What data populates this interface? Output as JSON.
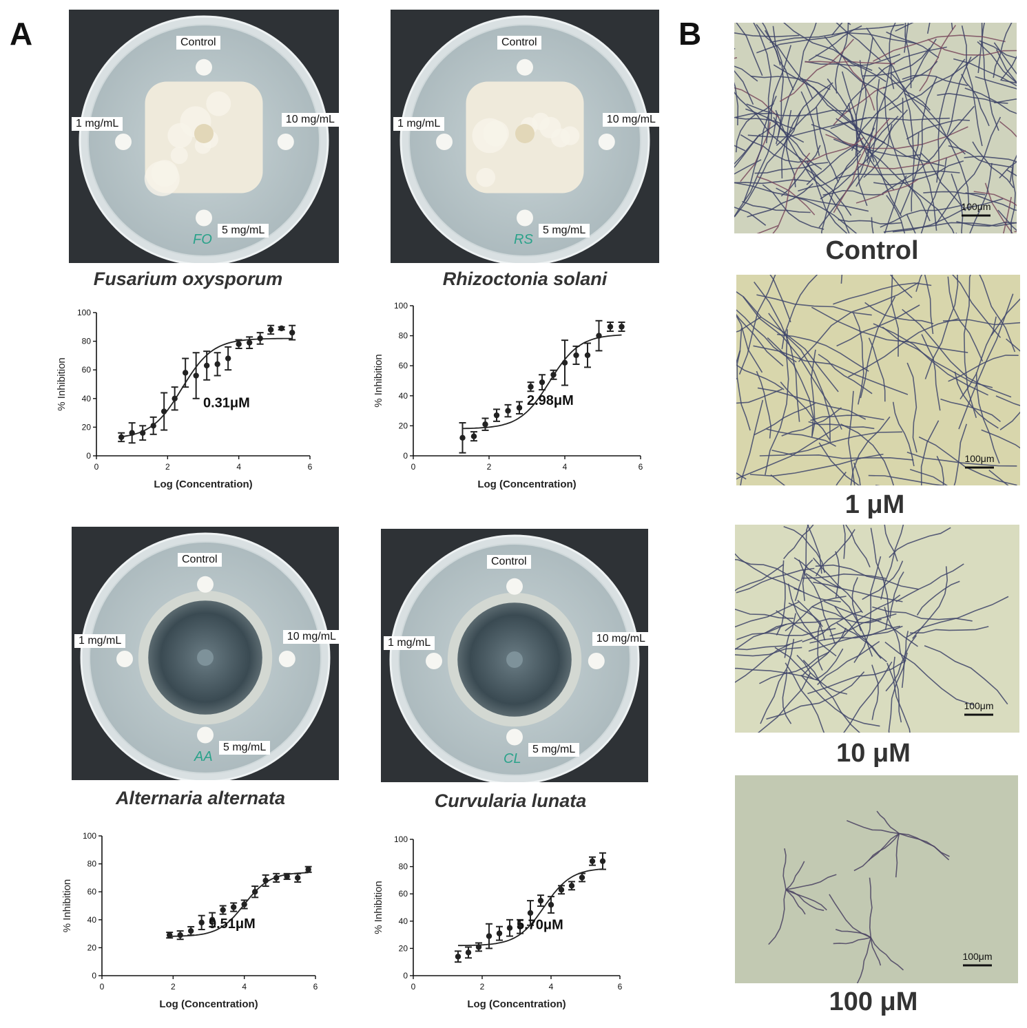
{
  "panels": {
    "a": "A",
    "b": "B"
  },
  "plates": [
    {
      "species": "Fusarium oxysporum",
      "labels": {
        "control": "Control",
        "low": "1 mg/mL",
        "high": "10 mg/mL",
        "mid": "5 mg/mL"
      },
      "marking": "FO",
      "halo": "white"
    },
    {
      "species": "Rhizoctonia solani",
      "labels": {
        "control": "Control",
        "low": "1 mg/mL",
        "high": "10 mg/mL",
        "mid": "5 mg/mL"
      },
      "marking": "RS",
      "halo": "white"
    },
    {
      "species": "Alternaria alternata",
      "labels": {
        "control": "Control",
        "low": "1 mg/mL",
        "high": "10 mg/mL",
        "mid": "5 mg/mL"
      },
      "marking": "AA",
      "halo": "dark"
    },
    {
      "species": "Curvularia lunata",
      "labels": {
        "control": "Control",
        "low": "1 mg/mL",
        "high": "10 mg/mL",
        "mid": "5 mg/mL"
      },
      "marking": "CL",
      "halo": "dark"
    }
  ],
  "chart_data": [
    {
      "type": "scatter",
      "title": "",
      "xlabel": "Log (Concentration)",
      "ylabel": "% Inhibition",
      "xlim": [
        0,
        6
      ],
      "ylim": [
        0,
        100
      ],
      "xticks": [
        "0",
        "2",
        "4",
        "6"
      ],
      "yticks": [
        "0",
        "20",
        "40",
        "60",
        "80",
        "100"
      ],
      "annotation": "0.31μM",
      "fit": {
        "bottom": 12,
        "top": 82,
        "logEC50": 2.4,
        "slope": 1.0
      },
      "points": [
        {
          "x": 0.7,
          "y": 13,
          "err": 3
        },
        {
          "x": 1.0,
          "y": 16,
          "err": 7
        },
        {
          "x": 1.3,
          "y": 16,
          "err": 5
        },
        {
          "x": 1.6,
          "y": 21,
          "err": 6
        },
        {
          "x": 1.9,
          "y": 31,
          "err": 13
        },
        {
          "x": 2.2,
          "y": 40,
          "err": 8
        },
        {
          "x": 2.5,
          "y": 58,
          "err": 10
        },
        {
          "x": 2.8,
          "y": 56,
          "err": 16
        },
        {
          "x": 3.1,
          "y": 63,
          "err": 10
        },
        {
          "x": 3.4,
          "y": 64,
          "err": 8
        },
        {
          "x": 3.7,
          "y": 68,
          "err": 8
        },
        {
          "x": 4.0,
          "y": 78,
          "err": 3
        },
        {
          "x": 4.3,
          "y": 79,
          "err": 4
        },
        {
          "x": 4.6,
          "y": 82,
          "err": 4
        },
        {
          "x": 4.9,
          "y": 88,
          "err": 3
        },
        {
          "x": 5.2,
          "y": 89,
          "err": 1
        },
        {
          "x": 5.5,
          "y": 86,
          "err": 5
        }
      ]
    },
    {
      "type": "scatter",
      "title": "",
      "xlabel": "Log (Concentration)",
      "ylabel": "% Inhibition",
      "xlim": [
        0,
        6
      ],
      "ylim": [
        0,
        100
      ],
      "xticks": [
        "0",
        "2",
        "4",
        "6"
      ],
      "yticks": [
        "0",
        "20",
        "40",
        "60",
        "80",
        "100"
      ],
      "annotation": "2.98μM",
      "fit": {
        "bottom": 18,
        "top": 81,
        "logEC50": 3.6,
        "slope": 1.1
      },
      "points": [
        {
          "x": 1.3,
          "y": 12,
          "err": 10
        },
        {
          "x": 1.6,
          "y": 13,
          "err": 3
        },
        {
          "x": 1.9,
          "y": 21,
          "err": 4
        },
        {
          "x": 2.2,
          "y": 27,
          "err": 4
        },
        {
          "x": 2.5,
          "y": 30,
          "err": 4
        },
        {
          "x": 2.8,
          "y": 32,
          "err": 4
        },
        {
          "x": 3.1,
          "y": 46,
          "err": 3
        },
        {
          "x": 3.4,
          "y": 49,
          "err": 5
        },
        {
          "x": 3.7,
          "y": 54,
          "err": 3
        },
        {
          "x": 4.0,
          "y": 62,
          "err": 15
        },
        {
          "x": 4.3,
          "y": 67,
          "err": 6
        },
        {
          "x": 4.6,
          "y": 67,
          "err": 8
        },
        {
          "x": 4.9,
          "y": 80,
          "err": 10
        },
        {
          "x": 5.2,
          "y": 86,
          "err": 3
        },
        {
          "x": 5.5,
          "y": 86,
          "err": 3
        }
      ]
    },
    {
      "type": "scatter",
      "title": "",
      "xlabel": "Log (Concentration)",
      "ylabel": "% Inhibition",
      "xlim": [
        0,
        6
      ],
      "ylim": [
        0,
        100
      ],
      "xticks": [
        "0",
        "2",
        "4",
        "6"
      ],
      "yticks": [
        "0",
        "20",
        "40",
        "60",
        "80",
        "100"
      ],
      "annotation": "9.51μM",
      "fit": {
        "bottom": 28,
        "top": 74,
        "logEC50": 4.0,
        "slope": 1.2
      },
      "points": [
        {
          "x": 1.9,
          "y": 29,
          "err": 2
        },
        {
          "x": 2.2,
          "y": 29,
          "err": 3
        },
        {
          "x": 2.5,
          "y": 32,
          "err": 3
        },
        {
          "x": 2.8,
          "y": 38,
          "err": 5
        },
        {
          "x": 3.1,
          "y": 40,
          "err": 5
        },
        {
          "x": 3.4,
          "y": 47,
          "err": 3
        },
        {
          "x": 3.7,
          "y": 49,
          "err": 3
        },
        {
          "x": 4.0,
          "y": 51,
          "err": 3
        },
        {
          "x": 4.3,
          "y": 60,
          "err": 4
        },
        {
          "x": 4.6,
          "y": 68,
          "err": 4
        },
        {
          "x": 4.9,
          "y": 70,
          "err": 3
        },
        {
          "x": 5.2,
          "y": 71,
          "err": 2
        },
        {
          "x": 5.5,
          "y": 70,
          "err": 3
        },
        {
          "x": 5.8,
          "y": 76,
          "err": 2
        }
      ]
    },
    {
      "type": "scatter",
      "title": "",
      "xlabel": "Log (Concentration)",
      "ylabel": "% Inhibition",
      "xlim": [
        0,
        6
      ],
      "ylim": [
        0,
        100
      ],
      "xticks": [
        "0",
        "2",
        "4",
        "6"
      ],
      "yticks": [
        "0",
        "20",
        "40",
        "60",
        "80",
        "100"
      ],
      "annotation": "5.70μM",
      "fit": {
        "bottom": 22,
        "top": 79,
        "logEC50": 3.8,
        "slope": 1.1
      },
      "points": [
        {
          "x": 1.3,
          "y": 14,
          "err": 4
        },
        {
          "x": 1.6,
          "y": 17,
          "err": 4
        },
        {
          "x": 1.9,
          "y": 21,
          "err": 3
        },
        {
          "x": 2.2,
          "y": 29,
          "err": 9
        },
        {
          "x": 2.5,
          "y": 31,
          "err": 5
        },
        {
          "x": 2.8,
          "y": 35,
          "err": 6
        },
        {
          "x": 3.1,
          "y": 36,
          "err": 5
        },
        {
          "x": 3.4,
          "y": 46,
          "err": 9
        },
        {
          "x": 3.7,
          "y": 55,
          "err": 4
        },
        {
          "x": 4.0,
          "y": 52,
          "err": 6
        },
        {
          "x": 4.3,
          "y": 63,
          "err": 3
        },
        {
          "x": 4.6,
          "y": 66,
          "err": 3
        },
        {
          "x": 4.9,
          "y": 72,
          "err": 3
        },
        {
          "x": 5.2,
          "y": 84,
          "err": 3
        },
        {
          "x": 5.5,
          "y": 84,
          "err": 6
        }
      ]
    }
  ],
  "micrographs": [
    {
      "label": "Control",
      "scale": "100μm",
      "density": "dense"
    },
    {
      "label": "1 μM",
      "scale": "100μm",
      "density": "medium"
    },
    {
      "label": "10 μM",
      "scale": "100μm",
      "density": "clustered"
    },
    {
      "label": "100 μM",
      "scale": "100μm",
      "density": "sparse"
    }
  ]
}
